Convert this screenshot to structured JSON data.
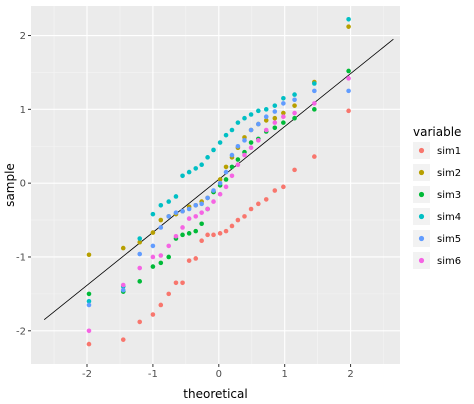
{
  "chart_data": {
    "type": "scatter",
    "title": "",
    "xlabel": "theoretical",
    "ylabel": "sample",
    "xlim": [
      -2.85,
      2.75
    ],
    "ylim": [
      -2.45,
      2.4
    ],
    "x_ticks": [
      -2,
      -1,
      0,
      1,
      2
    ],
    "y_ticks": [
      -2,
      -1,
      0,
      1,
      2
    ],
    "grid": true,
    "background": "#EBEBEB",
    "legend": {
      "title": "variable",
      "position": "right"
    },
    "reference_line": {
      "from": [
        -2.65,
        -1.85
      ],
      "to": [
        2.65,
        1.95
      ],
      "color": "#000000"
    },
    "theoretical": [
      -1.97,
      -1.45,
      -1.2,
      -1.0,
      -0.88,
      -0.76,
      -0.65,
      -0.55,
      -0.45,
      -0.35,
      -0.26,
      -0.17,
      -0.08,
      0.02,
      0.11,
      0.2,
      0.29,
      0.39,
      0.49,
      0.6,
      0.72,
      0.85,
      0.98,
      1.15,
      1.45,
      1.97
    ],
    "series": [
      {
        "name": "sim1",
        "color": "#F8766D",
        "values": [
          -2.18,
          -2.12,
          -1.88,
          -1.78,
          -1.65,
          -1.5,
          -1.35,
          -1.35,
          -1.05,
          -1.02,
          -0.78,
          -0.7,
          -0.7,
          -0.68,
          -0.65,
          -0.58,
          -0.5,
          -0.45,
          -0.35,
          -0.28,
          -0.22,
          -0.1,
          -0.05,
          0.18,
          0.36,
          0.98
        ]
      },
      {
        "name": "sim2",
        "color": "#B79F00",
        "values": [
          -0.97,
          -0.88,
          -0.8,
          -0.67,
          -0.5,
          -0.45,
          -0.42,
          -0.38,
          -0.32,
          -0.3,
          -0.25,
          -0.2,
          -0.12,
          0.05,
          0.22,
          0.35,
          0.48,
          0.62,
          0.72,
          0.8,
          0.85,
          0.88,
          0.95,
          1.05,
          1.37,
          2.12
        ]
      },
      {
        "name": "sim3",
        "color": "#00BA38",
        "values": [
          -1.5,
          -1.47,
          -1.33,
          -1.13,
          -1.08,
          -1.0,
          -0.75,
          -0.7,
          -0.68,
          -0.65,
          -0.55,
          -0.35,
          -0.12,
          -0.03,
          0.05,
          0.22,
          0.32,
          0.42,
          0.55,
          0.6,
          0.7,
          0.75,
          0.82,
          0.88,
          1.0,
          1.52
        ]
      },
      {
        "name": "sim4",
        "color": "#00BFC4",
        "values": [
          -1.6,
          -1.4,
          -0.75,
          -0.42,
          -0.3,
          -0.25,
          -0.18,
          0.1,
          0.15,
          0.2,
          0.25,
          0.35,
          0.45,
          0.55,
          0.65,
          0.72,
          0.82,
          0.88,
          0.93,
          0.98,
          1.0,
          1.05,
          1.15,
          1.2,
          1.35,
          2.22
        ]
      },
      {
        "name": "sim5",
        "color": "#619CFF",
        "values": [
          -1.65,
          -1.45,
          -0.96,
          -0.85,
          -0.6,
          -0.45,
          -0.4,
          -0.38,
          -0.35,
          -0.3,
          -0.28,
          -0.2,
          -0.1,
          0.0,
          0.15,
          0.38,
          0.5,
          0.58,
          0.72,
          0.8,
          0.9,
          0.97,
          1.08,
          1.13,
          1.25,
          1.25
        ]
      },
      {
        "name": "sim6",
        "color": "#F564E3",
        "values": [
          -2.0,
          -1.38,
          -1.15,
          -1.0,
          -0.98,
          -0.85,
          -0.72,
          -0.6,
          -0.48,
          -0.45,
          -0.4,
          -0.35,
          -0.25,
          -0.15,
          -0.05,
          0.1,
          0.25,
          0.38,
          0.48,
          0.58,
          0.72,
          0.82,
          0.9,
          0.95,
          1.08,
          1.42
        ]
      }
    ]
  }
}
